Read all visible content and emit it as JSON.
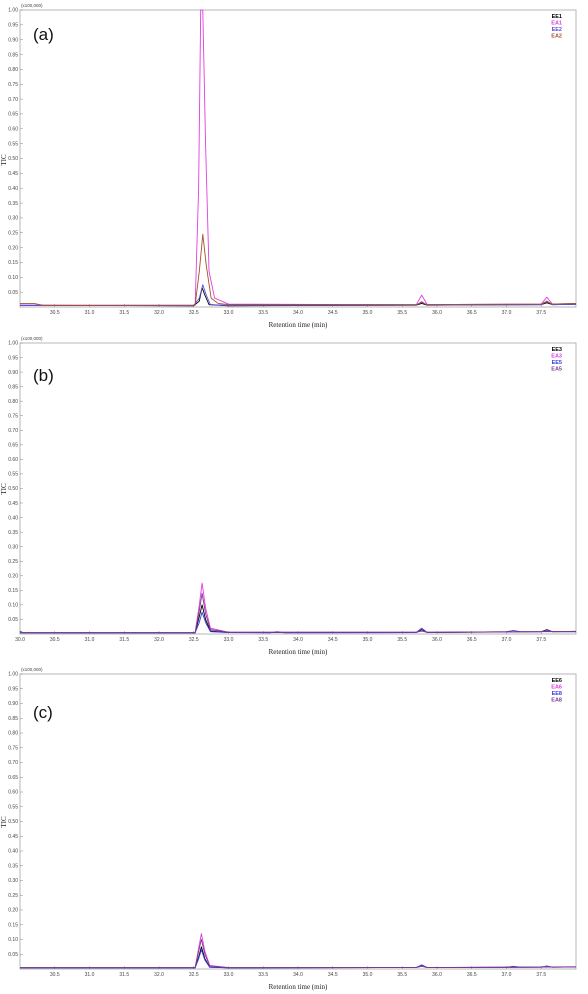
{
  "chart_data": [
    {
      "type": "line",
      "panel_label": "(a)",
      "multiplier": "(x100,000)",
      "xlabel": "Retention time (min)",
      "ylabel": "TIC",
      "xlim": [
        30.0,
        38.0
      ],
      "ylim": [
        0,
        1.0
      ],
      "x_ticks": [
        "30.5",
        "31.0",
        "31.5",
        "32.0",
        "32.5",
        "33.0",
        "33.5",
        "34.0",
        "34.5",
        "35.0",
        "35.5",
        "36.0",
        "36.5",
        "37.0",
        "37.5"
      ],
      "y_ticks": [
        "0.05",
        "0.10",
        "0.15",
        "0.20",
        "0.25",
        "0.30",
        "0.35",
        "0.40",
        "0.45",
        "0.50",
        "0.55",
        "0.60",
        "0.65",
        "0.70",
        "0.75",
        "0.80",
        "0.85",
        "0.90",
        "0.95",
        "1.00"
      ],
      "legend_position": "top-right",
      "series": [
        {
          "name": "EE1",
          "color": "#000000",
          "baseline": 0.003,
          "points": [
            [
              30.0,
              0.006
            ],
            [
              32.5,
              0.004
            ],
            [
              32.58,
              0.02
            ],
            [
              32.62,
              0.065
            ],
            [
              32.66,
              0.04
            ],
            [
              32.72,
              0.008
            ],
            [
              33.0,
              0.004
            ],
            [
              35.7,
              0.006
            ],
            [
              35.78,
              0.012
            ],
            [
              35.86,
              0.006
            ],
            [
              37.5,
              0.008
            ],
            [
              37.58,
              0.014
            ],
            [
              37.66,
              0.008
            ],
            [
              38.0,
              0.009
            ]
          ]
        },
        {
          "name": "EA1",
          "color": "#e23ce2",
          "baseline": 0.004,
          "points": [
            [
              30.0,
              0.006
            ],
            [
              32.52,
              0.006
            ],
            [
              32.57,
              0.4
            ],
            [
              32.6,
              1.0
            ],
            [
              32.63,
              1.0
            ],
            [
              32.67,
              0.55
            ],
            [
              32.72,
              0.12
            ],
            [
              32.8,
              0.03
            ],
            [
              33.0,
              0.01
            ],
            [
              35.7,
              0.007
            ],
            [
              35.78,
              0.04
            ],
            [
              35.86,
              0.008
            ],
            [
              37.5,
              0.01
            ],
            [
              37.58,
              0.033
            ],
            [
              37.66,
              0.01
            ],
            [
              38.0,
              0.012
            ]
          ]
        },
        {
          "name": "EE2",
          "color": "#5a4fe0",
          "baseline": 0.004,
          "points": [
            [
              30.0,
              0.005
            ],
            [
              32.5,
              0.005
            ],
            [
              32.58,
              0.03
            ],
            [
              32.63,
              0.075
            ],
            [
              32.68,
              0.04
            ],
            [
              32.74,
              0.008
            ],
            [
              33.0,
              0.005
            ],
            [
              35.7,
              0.006
            ],
            [
              35.78,
              0.018
            ],
            [
              35.86,
              0.006
            ],
            [
              37.5,
              0.008
            ],
            [
              37.58,
              0.02
            ],
            [
              37.66,
              0.008
            ],
            [
              38.0,
              0.009
            ]
          ]
        },
        {
          "name": "EA2",
          "color": "#a0522d",
          "baseline": 0.005,
          "points": [
            [
              30.0,
              0.012
            ],
            [
              30.2,
              0.012
            ],
            [
              30.35,
              0.005
            ],
            [
              32.52,
              0.006
            ],
            [
              32.58,
              0.12
            ],
            [
              32.63,
              0.245
            ],
            [
              32.68,
              0.14
            ],
            [
              32.75,
              0.03
            ],
            [
              32.85,
              0.012
            ],
            [
              33.0,
              0.008
            ],
            [
              35.7,
              0.008
            ],
            [
              35.78,
              0.015
            ],
            [
              35.86,
              0.008
            ],
            [
              37.5,
              0.01
            ],
            [
              37.58,
              0.018
            ],
            [
              37.66,
              0.01
            ],
            [
              38.0,
              0.012
            ]
          ]
        }
      ]
    },
    {
      "type": "line",
      "panel_label": "(b)",
      "multiplier": "(x100,000)",
      "xlabel": "Retention time (min)",
      "ylabel": "TIC",
      "xlim": [
        30.0,
        38.0
      ],
      "ylim": [
        0,
        1.0
      ],
      "x_ticks": [
        "30.0",
        "30.5",
        "31.0",
        "31.5",
        "32.0",
        "32.5",
        "33.0",
        "33.5",
        "34.0",
        "34.5",
        "35.0",
        "35.5",
        "36.0",
        "36.5",
        "37.0",
        "37.5"
      ],
      "y_ticks": [
        "0.05",
        "0.10",
        "0.15",
        "0.20",
        "0.25",
        "0.30",
        "0.35",
        "0.40",
        "0.45",
        "0.50",
        "0.55",
        "0.60",
        "0.65",
        "0.70",
        "0.75",
        "0.80",
        "0.85",
        "0.90",
        "0.95",
        "1.00"
      ],
      "legend_position": "top-right",
      "series": [
        {
          "name": "EE3",
          "color": "#000000",
          "points": [
            [
              30.0,
              0.004
            ],
            [
              32.52,
              0.004
            ],
            [
              32.58,
              0.06
            ],
            [
              32.62,
              0.1
            ],
            [
              32.67,
              0.05
            ],
            [
              32.74,
              0.01
            ],
            [
              33.0,
              0.005
            ],
            [
              35.7,
              0.005
            ],
            [
              35.78,
              0.015
            ],
            [
              35.86,
              0.005
            ],
            [
              37.5,
              0.008
            ],
            [
              37.58,
              0.015
            ],
            [
              37.66,
              0.008
            ],
            [
              38.0,
              0.008
            ]
          ]
        },
        {
          "name": "EA3",
          "color": "#e23ce2",
          "points": [
            [
              30.0,
              0.005
            ],
            [
              32.52,
              0.005
            ],
            [
              32.58,
              0.1
            ],
            [
              32.62,
              0.175
            ],
            [
              32.67,
              0.09
            ],
            [
              32.74,
              0.02
            ],
            [
              33.0,
              0.006
            ],
            [
              35.7,
              0.006
            ],
            [
              35.78,
              0.012
            ],
            [
              35.86,
              0.006
            ],
            [
              37.5,
              0.008
            ],
            [
              37.58,
              0.012
            ],
            [
              37.66,
              0.008
            ],
            [
              38.0,
              0.009
            ]
          ]
        },
        {
          "name": "EE5",
          "color": "#3a3ae0",
          "points": [
            [
              30.0,
              0.01
            ],
            [
              30.05,
              0.004
            ],
            [
              32.52,
              0.004
            ],
            [
              32.58,
              0.04
            ],
            [
              32.62,
              0.075
            ],
            [
              32.67,
              0.04
            ],
            [
              32.74,
              0.008
            ],
            [
              33.0,
              0.005
            ],
            [
              33.6,
              0.004
            ],
            [
              33.7,
              0.008
            ],
            [
              33.8,
              0.004
            ],
            [
              35.7,
              0.005
            ],
            [
              35.78,
              0.02
            ],
            [
              35.86,
              0.005
            ],
            [
              37.0,
              0.008
            ],
            [
              37.1,
              0.012
            ],
            [
              37.2,
              0.008
            ],
            [
              38.0,
              0.008
            ]
          ]
        },
        {
          "name": "EA5",
          "color": "#7b3b8c",
          "points": [
            [
              30.0,
              0.005
            ],
            [
              32.52,
              0.005
            ],
            [
              32.58,
              0.08
            ],
            [
              32.62,
              0.14
            ],
            [
              32.67,
              0.07
            ],
            [
              32.74,
              0.015
            ],
            [
              33.0,
              0.006
            ],
            [
              35.7,
              0.006
            ],
            [
              35.78,
              0.01
            ],
            [
              35.86,
              0.006
            ],
            [
              37.5,
              0.008
            ],
            [
              37.58,
              0.01
            ],
            [
              37.66,
              0.008
            ],
            [
              38.0,
              0.009
            ]
          ]
        }
      ]
    },
    {
      "type": "line",
      "panel_label": "(c)",
      "multiplier": "(x100,000)",
      "xlabel": "Retention time (min)",
      "ylabel": "TIC",
      "xlim": [
        30.0,
        38.0
      ],
      "ylim": [
        0,
        1.0
      ],
      "x_ticks": [
        "30.5",
        "31.0",
        "31.5",
        "32.0",
        "32.5",
        "33.0",
        "33.5",
        "34.0",
        "34.5",
        "35.0",
        "35.5",
        "36.0",
        "36.5",
        "37.0",
        "37.5"
      ],
      "y_ticks": [
        "0.05",
        "0.10",
        "0.15",
        "0.20",
        "0.25",
        "0.30",
        "0.35",
        "0.40",
        "0.45",
        "0.50",
        "0.55",
        "0.60",
        "0.65",
        "0.70",
        "0.75",
        "0.80",
        "0.85",
        "0.90",
        "0.95",
        "1.00"
      ],
      "legend_position": "top-right",
      "series": [
        {
          "name": "EE6",
          "color": "#000000",
          "points": [
            [
              30.0,
              0.004
            ],
            [
              32.52,
              0.004
            ],
            [
              32.57,
              0.04
            ],
            [
              32.61,
              0.075
            ],
            [
              32.66,
              0.035
            ],
            [
              32.73,
              0.006
            ],
            [
              33.0,
              0.004
            ],
            [
              35.7,
              0.005
            ],
            [
              35.78,
              0.012
            ],
            [
              35.86,
              0.005
            ],
            [
              37.5,
              0.006
            ],
            [
              37.58,
              0.01
            ],
            [
              37.66,
              0.006
            ],
            [
              38.0,
              0.007
            ]
          ]
        },
        {
          "name": "EA6",
          "color": "#e23ce2",
          "points": [
            [
              30.0,
              0.005
            ],
            [
              32.52,
              0.005
            ],
            [
              32.57,
              0.07
            ],
            [
              32.61,
              0.12
            ],
            [
              32.66,
              0.06
            ],
            [
              32.73,
              0.012
            ],
            [
              33.0,
              0.005
            ],
            [
              35.7,
              0.005
            ],
            [
              35.78,
              0.01
            ],
            [
              35.86,
              0.005
            ],
            [
              37.5,
              0.007
            ],
            [
              37.58,
              0.01
            ],
            [
              37.66,
              0.007
            ],
            [
              38.0,
              0.008
            ]
          ]
        },
        {
          "name": "EE8",
          "color": "#3a3ae0",
          "points": [
            [
              30.0,
              0.004
            ],
            [
              32.52,
              0.004
            ],
            [
              32.57,
              0.035
            ],
            [
              32.61,
              0.065
            ],
            [
              32.66,
              0.03
            ],
            [
              32.73,
              0.006
            ],
            [
              33.0,
              0.004
            ],
            [
              35.7,
              0.005
            ],
            [
              35.78,
              0.014
            ],
            [
              35.86,
              0.005
            ],
            [
              37.0,
              0.006
            ],
            [
              37.1,
              0.009
            ],
            [
              37.2,
              0.006
            ],
            [
              38.0,
              0.007
            ]
          ]
        },
        {
          "name": "EA8",
          "color": "#7b3b8c",
          "points": [
            [
              30.0,
              0.005
            ],
            [
              32.52,
              0.005
            ],
            [
              32.57,
              0.06
            ],
            [
              32.61,
              0.1
            ],
            [
              32.66,
              0.05
            ],
            [
              32.73,
              0.01
            ],
            [
              33.0,
              0.005
            ],
            [
              35.7,
              0.005
            ],
            [
              35.78,
              0.009
            ],
            [
              35.86,
              0.005
            ],
            [
              37.5,
              0.006
            ],
            [
              37.58,
              0.009
            ],
            [
              37.66,
              0.006
            ],
            [
              38.0,
              0.007
            ]
          ]
        }
      ]
    }
  ]
}
